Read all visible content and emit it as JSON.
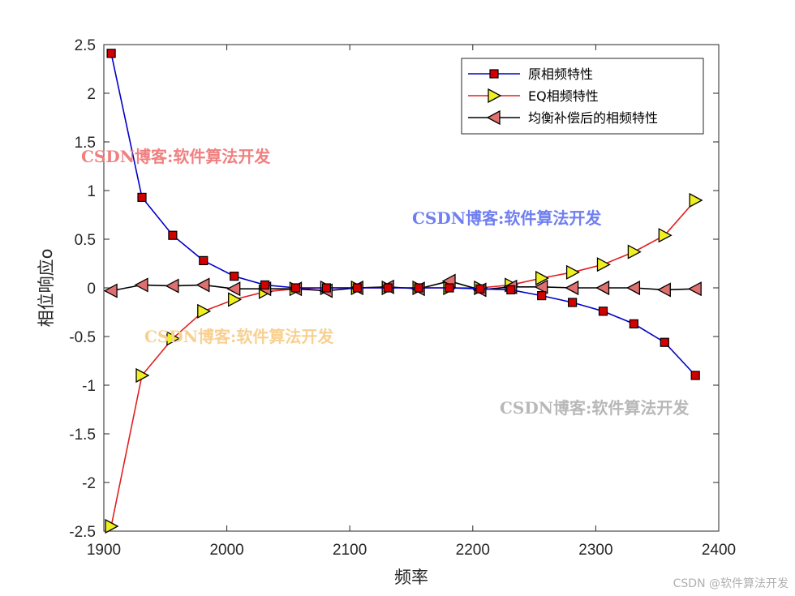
{
  "chart_data": {
    "type": "line",
    "xlabel": "频率",
    "ylabel": "相位响应o",
    "xlim": [
      1900,
      2400
    ],
    "ylim": [
      -2.5,
      2.5
    ],
    "xticks": [
      1900,
      2000,
      2100,
      2200,
      2300,
      2400
    ],
    "yticks": [
      2.5,
      2,
      1.5,
      1,
      0.5,
      0,
      -0.5,
      -1,
      -1.5,
      -2,
      -2.5
    ],
    "grid": false,
    "legend_position": "top-right",
    "series": [
      {
        "name": "原相频特性",
        "color": "#0000c8",
        "marker": "square",
        "marker_fill": "#d40000",
        "x": [
          1906,
          1931,
          1956,
          1981,
          2006,
          2031,
          2056,
          2081,
          2106,
          2131,
          2156,
          2181,
          2206,
          2231,
          2256,
          2281,
          2306,
          2331,
          2356,
          2381
        ],
        "y": [
          2.41,
          0.93,
          0.54,
          0.28,
          0.12,
          0.03,
          0.0,
          0.0,
          0.0,
          0.0,
          0.0,
          0.0,
          -0.01,
          -0.02,
          -0.08,
          -0.15,
          -0.24,
          -0.37,
          -0.56,
          -0.9
        ]
      },
      {
        "name": "EQ相频特性",
        "color": "#e02020",
        "marker": "triangle-right",
        "marker_fill": "#f0f020",
        "x": [
          1906,
          1931,
          1956,
          1981,
          2006,
          2031,
          2056,
          2081,
          2106,
          2131,
          2156,
          2181,
          2206,
          2231,
          2256,
          2281,
          2306,
          2331,
          2356,
          2381
        ],
        "y": [
          -2.45,
          -0.9,
          -0.52,
          -0.24,
          -0.12,
          -0.04,
          -0.01,
          0.0,
          0.0,
          0.0,
          0.0,
          0.0,
          0.0,
          0.03,
          0.1,
          0.16,
          0.24,
          0.37,
          0.54,
          0.9
        ]
      },
      {
        "name": "均衡补偿后的相频特性",
        "color": "#000000",
        "marker": "triangle-left",
        "marker_fill": "#e07070",
        "x": [
          1906,
          1931,
          1956,
          1981,
          2006,
          2031,
          2056,
          2081,
          2106,
          2131,
          2156,
          2181,
          2206,
          2231,
          2256,
          2281,
          2306,
          2331,
          2356,
          2381
        ],
        "y": [
          -0.03,
          0.03,
          0.02,
          0.03,
          -0.01,
          -0.01,
          -0.01,
          -0.03,
          0.0,
          0.01,
          -0.01,
          0.07,
          -0.02,
          0.01,
          0.01,
          0.0,
          0.0,
          0.0,
          -0.02,
          -0.01
        ]
      }
    ]
  },
  "watermarks": [
    {
      "text": "CSDN博客:软件算法开发",
      "color": "#f08080"
    },
    {
      "text": "CSDN博客:软件算法开发",
      "color": "#6f7fef"
    },
    {
      "text": "CSDN博客:软件算法开发",
      "color": "#f8d090"
    },
    {
      "text": "CSDN博客:软件算法开发",
      "color": "#b8b8b8"
    }
  ],
  "credit": "CSDN @软件算法开发"
}
